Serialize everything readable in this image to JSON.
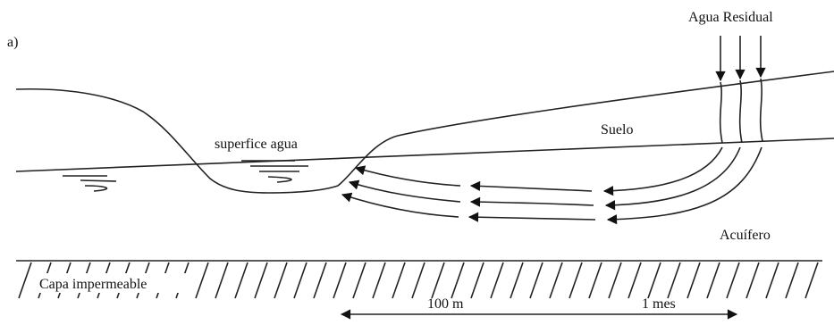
{
  "panel_label": "a)",
  "labels": {
    "wastewater": "Agua Residual",
    "soil": "Suelo",
    "water_surface": "superfice agua",
    "aquifer": "Acuífero",
    "impermeable_layer": "Capa impermeable",
    "distance": "100 m",
    "time": "1 mes"
  }
}
